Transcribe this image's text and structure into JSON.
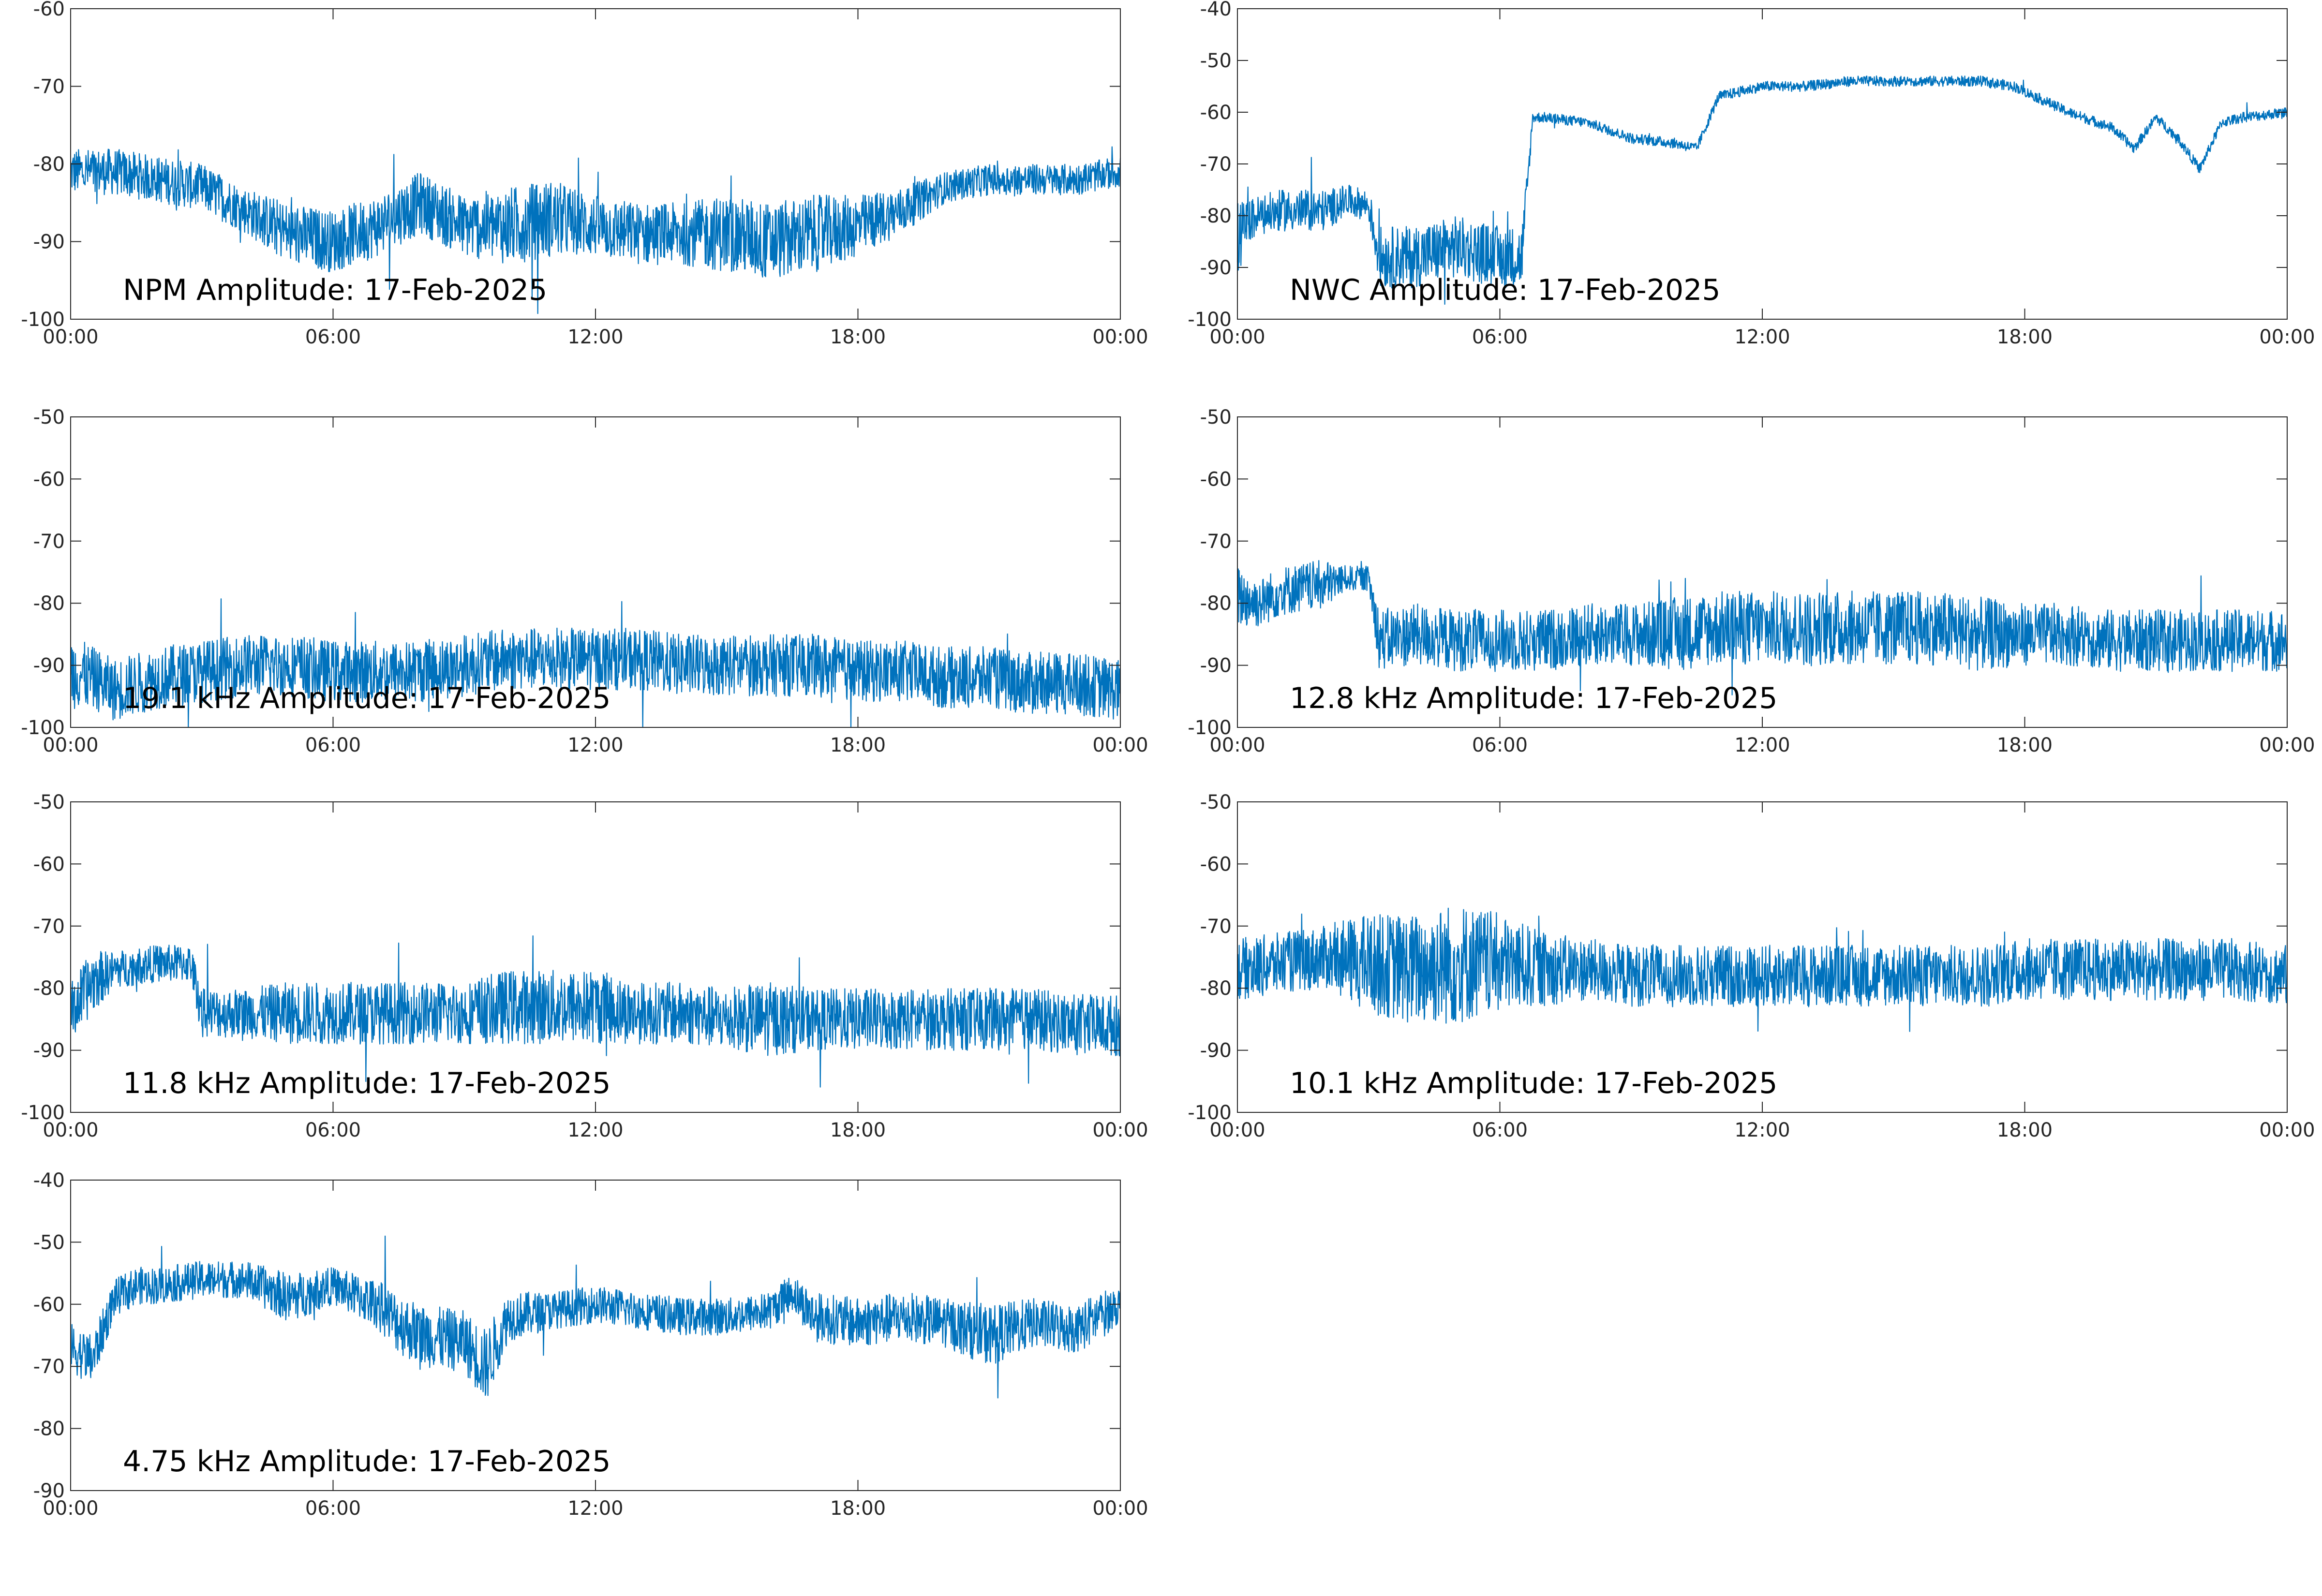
{
  "figure": {
    "background": "#ffffff",
    "line_color": "#0072bd",
    "axis_color": "#262626"
  },
  "chart_data": [
    {
      "type": "line",
      "title": "NPM Amplitude: 17-Feb-2025",
      "xlabel": "",
      "ylabel": "",
      "xlim": [
        "00:00",
        "00:00"
      ],
      "ylim": [
        -100,
        -60
      ],
      "yticks": [
        -60,
        -70,
        -80,
        -90,
        -100
      ],
      "xticks": [
        "00:00",
        "06:00",
        "12:00",
        "18:00",
        "00:00"
      ],
      "grid": false,
      "series": [
        {
          "x": [
            "00:00",
            "01:00",
            "02:00",
            "03:00",
            "04:00",
            "05:00",
            "06:00",
            "07:00",
            "08:00",
            "09:00",
            "10:00",
            "11:00",
            "12:00",
            "13:00",
            "14:00",
            "15:00",
            "16:00",
            "17:00",
            "18:00",
            "19:00",
            "20:00",
            "21:00",
            "22:00",
            "23:00",
            "24:00"
          ],
          "values": [
            -81,
            -81,
            -82,
            -83,
            -86,
            -89,
            -90,
            -88,
            -85,
            -88,
            -88,
            -87,
            -88,
            -89,
            -89,
            -89,
            -90,
            -89,
            -88,
            -86,
            -83,
            -82,
            -82,
            -82,
            -81
          ],
          "spread": [
            3,
            3,
            3,
            3,
            3,
            4,
            4,
            4,
            4,
            4,
            5,
            5,
            4,
            4,
            4,
            5,
            5,
            5,
            4,
            3,
            2,
            2,
            2,
            2,
            2
          ]
        }
      ]
    },
    {
      "type": "line",
      "title": "NWC Amplitude: 17-Feb-2025",
      "xlabel": "",
      "ylabel": "",
      "xlim": [
        "00:00",
        "00:00"
      ],
      "ylim": [
        -100,
        -40
      ],
      "yticks": [
        -40,
        -50,
        -60,
        -70,
        -80,
        -90,
        -100
      ],
      "xticks": [
        "00:00",
        "06:00",
        "12:00",
        "18:00",
        "00:00"
      ],
      "grid": false,
      "series": [
        {
          "x": [
            "00:00",
            "00:15",
            "00:30",
            "01:00",
            "02:00",
            "02:30",
            "03:00",
            "03:15",
            "04:00",
            "05:00",
            "06:00",
            "06:30",
            "06:45",
            "07:00",
            "08:00",
            "09:00",
            "10:00",
            "10:30",
            "11:00",
            "12:00",
            "13:00",
            "14:00",
            "15:00",
            "16:00",
            "17:00",
            "17:45",
            "18:30",
            "19:00",
            "20:00",
            "20:30",
            "21:00",
            "21:30",
            "22:00",
            "22:30",
            "23:00",
            "24:00"
          ],
          "values": [
            -85,
            -81,
            -80,
            -79,
            -79,
            -77,
            -78,
            -88,
            -88,
            -86,
            -88,
            -88,
            -61,
            -61,
            -62,
            -65,
            -66,
            -67,
            -57,
            -55,
            -55,
            -54,
            -54,
            -54,
            -54,
            -55,
            -58,
            -60,
            -63,
            -67,
            -61,
            -65,
            -71,
            -62,
            -61,
            -60
          ],
          "spread": [
            8,
            4,
            4,
            4,
            4,
            3,
            3,
            6,
            6,
            6,
            6,
            6,
            1,
            1,
            1,
            1,
            1,
            1,
            1,
            1,
            1,
            1,
            1,
            1,
            1,
            1,
            1,
            1,
            1,
            1,
            1,
            1,
            1,
            1,
            1,
            1
          ]
        }
      ]
    },
    {
      "type": "line",
      "title": "19.1 kHz Amplitude: 17-Feb-2025",
      "xlabel": "",
      "ylabel": "",
      "xlim": [
        "00:00",
        "00:00"
      ],
      "ylim": [
        -100,
        -50
      ],
      "yticks": [
        -50,
        -60,
        -70,
        -80,
        -90,
        -100
      ],
      "xticks": [
        "00:00",
        "06:00",
        "12:00",
        "18:00",
        "00:00"
      ],
      "grid": false,
      "series": [
        {
          "x": [
            "00:00",
            "00:30",
            "01:00",
            "02:00",
            "03:00",
            "04:00",
            "05:00",
            "06:00",
            "07:00",
            "08:00",
            "09:00",
            "10:00",
            "11:00",
            "12:00",
            "13:00",
            "14:00",
            "15:00",
            "16:00",
            "17:00",
            "18:00",
            "19:00",
            "20:00",
            "21:00",
            "22:00",
            "23:00",
            "24:00"
          ],
          "values": [
            -91,
            -92,
            -94,
            -92,
            -91,
            -90,
            -90,
            -91,
            -91,
            -91,
            -90,
            -89,
            -89,
            -89,
            -89,
            -90,
            -90,
            -90,
            -90,
            -91,
            -91,
            -92,
            -92,
            -93,
            -93,
            -94
          ],
          "spread": [
            6,
            5,
            5,
            5,
            5,
            5,
            5,
            5,
            5,
            5,
            5,
            5,
            5,
            5,
            5,
            5,
            5,
            5,
            5,
            5,
            5,
            5,
            5,
            5,
            5,
            5
          ]
        }
      ]
    },
    {
      "type": "line",
      "title": "12.8 kHz Amplitude: 17-Feb-2025",
      "xlabel": "",
      "ylabel": "",
      "xlim": [
        "00:00",
        "00:00"
      ],
      "ylim": [
        -100,
        -50
      ],
      "yticks": [
        -50,
        -60,
        -70,
        -80,
        -90,
        -100
      ],
      "xticks": [
        "00:00",
        "06:00",
        "12:00",
        "18:00",
        "00:00"
      ],
      "grid": false,
      "series": [
        {
          "x": [
            "00:00",
            "00:30",
            "01:00",
            "02:00",
            "02:30",
            "03:00",
            "03:15",
            "04:00",
            "05:00",
            "06:00",
            "07:00",
            "08:00",
            "09:00",
            "10:00",
            "11:00",
            "12:00",
            "13:00",
            "14:00",
            "15:00",
            "16:00",
            "17:00",
            "18:00",
            "19:00",
            "20:00",
            "21:00",
            "22:00",
            "23:00",
            "24:00"
          ],
          "values": [
            -79,
            -80,
            -78,
            -77,
            -76,
            -76,
            -86,
            -85,
            -86,
            -86,
            -86,
            -85,
            -85,
            -85,
            -84,
            -84,
            -84,
            -84,
            -84,
            -84,
            -85,
            -85,
            -85,
            -86,
            -86,
            -86,
            -86,
            -86
          ],
          "spread": [
            5,
            4,
            4,
            4,
            2,
            2,
            5,
            5,
            5,
            5,
            5,
            5,
            5,
            6,
            6,
            6,
            6,
            6,
            6,
            6,
            6,
            5,
            5,
            5,
            5,
            5,
            5,
            5
          ]
        }
      ]
    },
    {
      "type": "line",
      "title": "11.8 kHz Amplitude: 17-Feb-2025",
      "xlabel": "",
      "ylabel": "",
      "xlim": [
        "00:00",
        "00:00"
      ],
      "ylim": [
        -100,
        -50
      ],
      "yticks": [
        -50,
        -60,
        -70,
        -80,
        -90,
        -100
      ],
      "xticks": [
        "00:00",
        "06:00",
        "12:00",
        "18:00",
        "00:00"
      ],
      "grid": false,
      "series": [
        {
          "x": [
            "00:00",
            "00:30",
            "01:00",
            "02:00",
            "02:45",
            "03:00",
            "04:00",
            "05:00",
            "06:00",
            "07:00",
            "08:00",
            "09:00",
            "10:00",
            "11:00",
            "12:00",
            "13:00",
            "14:00",
            "15:00",
            "16:00",
            "17:00",
            "18:00",
            "19:00",
            "20:00",
            "21:00",
            "22:00",
            "23:00",
            "24:00"
          ],
          "values": [
            -84,
            -79,
            -77,
            -76,
            -76,
            -84,
            -84,
            -84,
            -84,
            -84,
            -84,
            -84,
            -83,
            -83,
            -83,
            -84,
            -84,
            -85,
            -85,
            -85,
            -85,
            -85,
            -85,
            -85,
            -85,
            -86,
            -86
          ],
          "spread": [
            5,
            5,
            3,
            3,
            3,
            4,
            4,
            5,
            5,
            5,
            5,
            5,
            6,
            6,
            6,
            5,
            5,
            5,
            6,
            5,
            5,
            5,
            5,
            5,
            5,
            5,
            5
          ]
        }
      ]
    },
    {
      "type": "line",
      "title": "10.1 kHz Amplitude: 17-Feb-2025",
      "xlabel": "",
      "ylabel": "",
      "xlim": [
        "00:00",
        "00:00"
      ],
      "ylim": [
        -100,
        -50
      ],
      "yticks": [
        -50,
        -60,
        -70,
        -80,
        -90,
        -100
      ],
      "xticks": [
        "00:00",
        "06:00",
        "12:00",
        "18:00",
        "00:00"
      ],
      "grid": false,
      "series": [
        {
          "x": [
            "00:00",
            "01:00",
            "02:00",
            "03:00",
            "04:00",
            "05:00",
            "06:00",
            "07:00",
            "08:00",
            "09:00",
            "10:00",
            "11:00",
            "12:00",
            "13:00",
            "14:00",
            "15:00",
            "16:00",
            "17:00",
            "18:00",
            "19:00",
            "20:00",
            "21:00",
            "22:00",
            "23:00",
            "24:00"
          ],
          "values": [
            -77,
            -76,
            -75,
            -76,
            -77,
            -76,
            -76,
            -77,
            -77,
            -78,
            -78,
            -78,
            -78,
            -78,
            -78,
            -78,
            -78,
            -78,
            -77,
            -77,
            -77,
            -77,
            -77,
            -77,
            -78
          ],
          "spread": [
            5,
            5,
            5,
            8,
            9,
            10,
            8,
            6,
            5,
            5,
            5,
            5,
            5,
            5,
            5,
            5,
            5,
            5,
            5,
            5,
            5,
            5,
            5,
            5,
            5
          ]
        }
      ]
    },
    {
      "type": "line",
      "title": "4.75 kHz Amplitude: 17-Feb-2025",
      "xlabel": "",
      "ylabel": "",
      "xlim": [
        "00:00",
        "00:00"
      ],
      "ylim": [
        -90,
        -40
      ],
      "yticks": [
        -40,
        -50,
        -60,
        -70,
        -80,
        -90
      ],
      "xticks": [
        "00:00",
        "06:00",
        "12:00",
        "18:00",
        "00:00"
      ],
      "grid": false,
      "series": [
        {
          "x": [
            "00:00",
            "00:30",
            "01:00",
            "01:30",
            "02:00",
            "03:00",
            "04:00",
            "05:00",
            "06:00",
            "07:00",
            "07:30",
            "08:00",
            "09:00",
            "09:30",
            "10:00",
            "11:00",
            "12:00",
            "13:00",
            "14:00",
            "15:00",
            "16:00",
            "16:30",
            "17:00",
            "18:00",
            "19:00",
            "20:00",
            "21:00",
            "22:00",
            "23:00",
            "23:30",
            "24:00"
          ],
          "values": [
            -67,
            -69,
            -59,
            -57,
            -57,
            -56,
            -56,
            -59,
            -57,
            -60,
            -63,
            -65,
            -66,
            -70,
            -62,
            -61,
            -60,
            -61,
            -62,
            -62,
            -61,
            -58,
            -62,
            -63,
            -62,
            -63,
            -65,
            -63,
            -64,
            -62,
            -60
          ],
          "spread": [
            4,
            4,
            3,
            3,
            3,
            3,
            3,
            4,
            3,
            4,
            5,
            5,
            5,
            6,
            4,
            3,
            3,
            3,
            3,
            3,
            3,
            3,
            4,
            4,
            4,
            4,
            5,
            4,
            4,
            4,
            3
          ]
        }
      ]
    }
  ]
}
